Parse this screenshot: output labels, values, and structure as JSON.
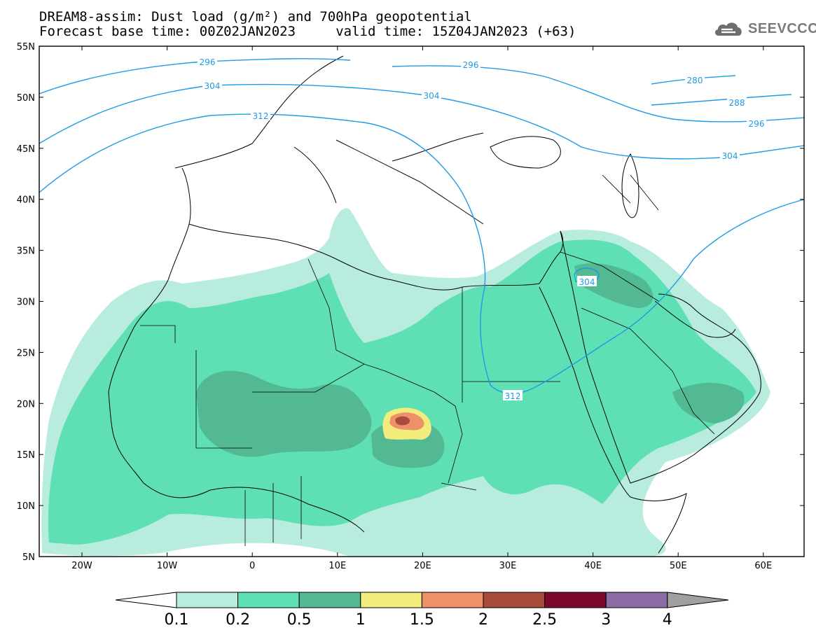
{
  "header": {
    "title_line1": "DREAM8-assim: Dust load (g/m²) and 700hPa geopotential",
    "title_line2": "Forecast base time: 00Z02JAN2023     valid time: 15Z04JAN2023 (+63)",
    "logo_text": "SEEVCCC",
    "logo_icon": "cloud-logo-icon"
  },
  "map": {
    "lat_labels": [
      "55N",
      "50N",
      "45N",
      "40N",
      "35N",
      "30N",
      "25N",
      "20N",
      "15N",
      "10N",
      "5N"
    ],
    "lon_labels": [
      "20W",
      "10W",
      "0",
      "10E",
      "20E",
      "30E",
      "40E",
      "50E",
      "60E"
    ],
    "contour_labels": [
      "296",
      "304",
      "312",
      "296",
      "304",
      "280",
      "288",
      "296",
      "304",
      "304",
      "312"
    ]
  },
  "colorbar": {
    "colors": [
      "#ffffff",
      "#b8ecdf",
      "#5fe0b4",
      "#52b992",
      "#f2ec7c",
      "#ee9068",
      "#a84a3c",
      "#7c0a2c",
      "#8c6ca4",
      "#a0a0a0"
    ],
    "labels": [
      "0.1",
      "0.2",
      "0.5",
      "1",
      "1.5",
      "2",
      "2.5",
      "3",
      "4"
    ]
  }
}
